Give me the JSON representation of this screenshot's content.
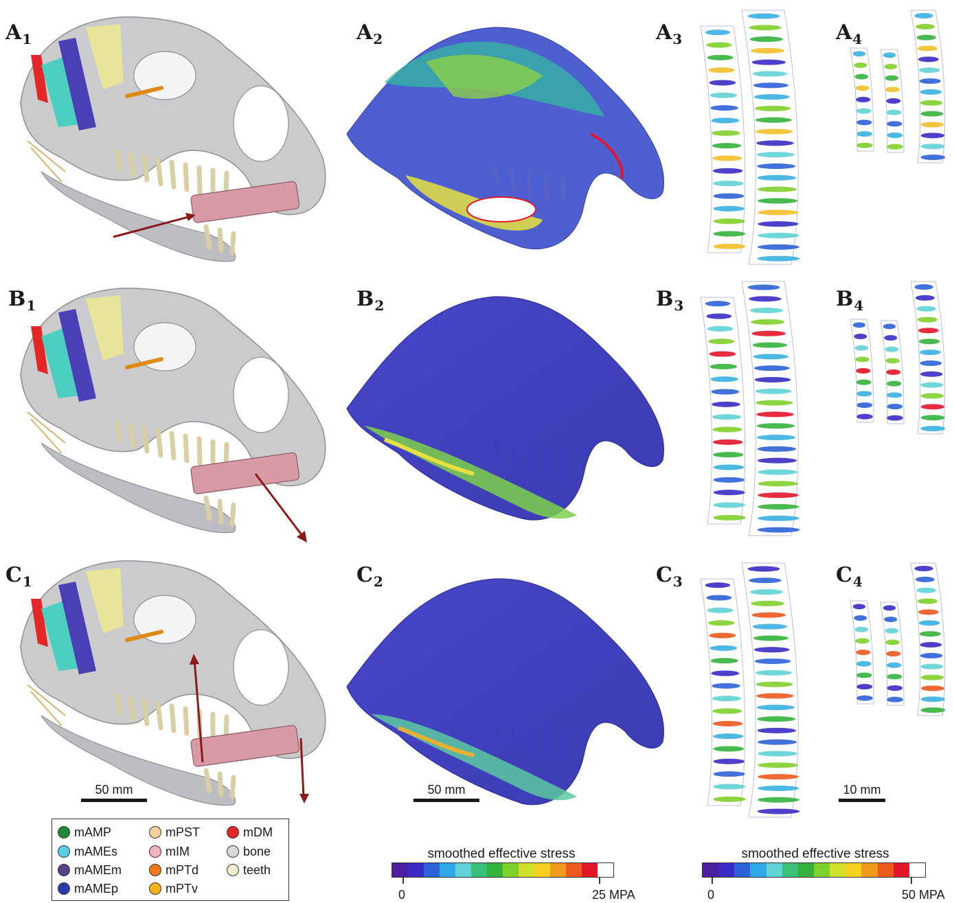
{
  "panels": {
    "A1": {
      "letter": "A",
      "num": "1"
    },
    "A2": {
      "letter": "A",
      "num": "2"
    },
    "A3": {
      "letter": "A",
      "num": "3"
    },
    "A4": {
      "letter": "A",
      "num": "4"
    },
    "B1": {
      "letter": "B",
      "num": "1"
    },
    "B2": {
      "letter": "B",
      "num": "2"
    },
    "B3": {
      "letter": "B",
      "num": "3"
    },
    "B4": {
      "letter": "B",
      "num": "4"
    },
    "C1": {
      "letter": "C",
      "num": "1"
    },
    "C2": {
      "letter": "C",
      "num": "2"
    },
    "C3": {
      "letter": "C",
      "num": "3"
    },
    "C4": {
      "letter": "C",
      "num": "4"
    }
  },
  "scale_bars": {
    "skull_model": "50 mm",
    "stress_model": "50 mm",
    "teeth": "10 mm"
  },
  "legend": {
    "items": [
      {
        "label": "mAMP",
        "color": "#1f8a3a"
      },
      {
        "label": "mAMEs",
        "color": "#5ccde8"
      },
      {
        "label": "mAMEm",
        "color": "#5a3f8a"
      },
      {
        "label": "mAMEp",
        "color": "#2a3aa8"
      },
      {
        "label": "mPST",
        "color": "#f6cfa0"
      },
      {
        "label": "mIM",
        "color": "#f2b3bd"
      },
      {
        "label": "mPTd",
        "color": "#ee7a1a"
      },
      {
        "label": "mPTv",
        "color": "#f3b31a"
      },
      {
        "label": "mDM",
        "color": "#e32626"
      },
      {
        "label": "bone",
        "color": "#d9d9d9"
      },
      {
        "label": "teeth",
        "color": "#efeccc"
      }
    ]
  },
  "colorbars": {
    "left": {
      "title": "smoothed effective stress",
      "min": "0",
      "max": "25 MPA"
    },
    "right": {
      "title": "smoothed effective stress",
      "min": "0",
      "max": "50 MPA"
    },
    "colors": [
      "#4b1fa0",
      "#3a2bc4",
      "#2d62d8",
      "#2fa7e8",
      "#5fd3d6",
      "#39c07a",
      "#35b23c",
      "#7fd02c",
      "#cfe02a",
      "#f7d11e",
      "#f29a1c",
      "#ec5a1e",
      "#e3162a",
      "#ffffff"
    ]
  }
}
